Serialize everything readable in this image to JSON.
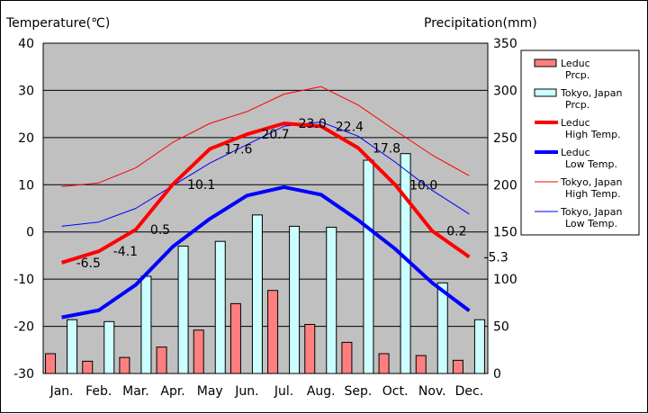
{
  "chart_data": {
    "type": "bar+line",
    "y_left_label": "Temperature(℃)",
    "y_right_label": "Precipitation(mm)",
    "y_left_range": [
      -30,
      40
    ],
    "y_left_ticks": [
      "40",
      "30",
      "20",
      "10",
      "0",
      "-10",
      "-20",
      "-30"
    ],
    "y_right_range": [
      0,
      350
    ],
    "y_right_ticks": [
      "350",
      "300",
      "250",
      "200",
      "150",
      "100",
      "50",
      "0"
    ],
    "categories": [
      "Jan.",
      "Feb.",
      "Mar.",
      "Apr.",
      "May",
      "Jun.",
      "Jul.",
      "Aug.",
      "Sep.",
      "Oct.",
      "Nov.",
      "Dec."
    ],
    "bars": [
      {
        "name": "Leduc\nPrcp.",
        "color": "#ff7f7f",
        "values": [
          21,
          13,
          17,
          28,
          46,
          74,
          88,
          52,
          33,
          21,
          19,
          14
        ]
      },
      {
        "name": "Tokyo, Japan\nPrcp.",
        "color": "#ccffff",
        "values": [
          57,
          55,
          103,
          135,
          140,
          168,
          156,
          155,
          226,
          233,
          96,
          57
        ]
      }
    ],
    "lines": [
      {
        "name": "Leduc\nHigh Temp.",
        "color": "#ff0000",
        "width": 4,
        "values": [
          -6.5,
          -4.1,
          0.5,
          10.1,
          17.6,
          20.7,
          23.0,
          22.4,
          17.8,
          10.0,
          0.2,
          -5.3
        ],
        "labels": [
          "-6.5",
          "-4.1",
          "0.5",
          "10.1",
          "17.6",
          "20.7",
          "23.0",
          "22.4",
          "17.8",
          "10.0",
          "0.2",
          "-5.3"
        ]
      },
      {
        "name": "Leduc\nLow Temp.",
        "color": "#0000ff",
        "width": 4,
        "values": [
          -18.1,
          -16.6,
          -11.2,
          -3.1,
          2.8,
          7.7,
          9.5,
          7.9,
          2.5,
          -3.6,
          -10.8,
          -16.7
        ]
      },
      {
        "name": "Tokyo, Japan\nHigh Temp.",
        "color": "#ff0000",
        "width": 1,
        "values": [
          9.6,
          10.4,
          13.6,
          19.0,
          23.0,
          25.5,
          29.2,
          30.8,
          26.9,
          21.5,
          16.3,
          11.9
        ]
      },
      {
        "name": "Tokyo, Japan\nLow Temp.",
        "color": "#0000ff",
        "width": 1,
        "values": [
          1.2,
          2.1,
          5.0,
          9.8,
          14.6,
          18.5,
          22.4,
          23.3,
          20.3,
          14.8,
          8.8,
          3.8
        ]
      }
    ],
    "legend_position": "right",
    "grid": true
  }
}
